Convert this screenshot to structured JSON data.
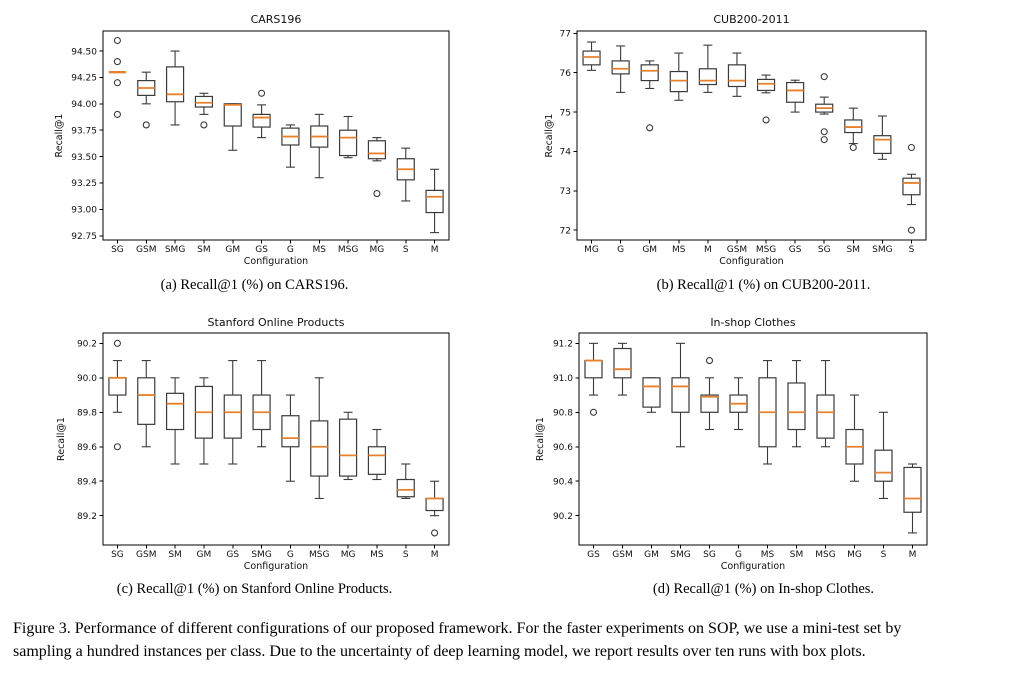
{
  "page": {
    "figure_caption_lines": [
      "Figure 3. Performance of different configurations of our proposed framework. For the faster experiments on SOP, we use a mini-test set by",
      "sampling a hundred instances per class. Due to the uncertainty of deep learning model, we report results over ten runs with box plots."
    ]
  },
  "colors": {
    "median": "#e8812e",
    "box_edge": "#3a3a3a",
    "axis": "#000000",
    "text": "#111111",
    "background": "#ffffff"
  },
  "chart_data": [
    {
      "type": "box",
      "title": "CARS196",
      "caption": "(a) Recall@1 (%) on CARS196.",
      "xlabel": "Configuration",
      "ylabel": "Recall@1",
      "ylim": [
        92.71,
        94.69
      ],
      "yticks": [
        "92.75",
        "93.00",
        "93.25",
        "93.50",
        "93.75",
        "94.00",
        "94.25",
        "94.50"
      ],
      "categories": [
        "SG",
        "GSM",
        "SMG",
        "SM",
        "GM",
        "GS",
        "G",
        "MS",
        "MSG",
        "MG",
        "S",
        "M"
      ],
      "boxes": [
        {
          "whislo": 94.3,
          "q1": 94.3,
          "med": 94.3,
          "q3": 94.3,
          "whishi": 94.3,
          "fliers": [
            94.6,
            94.4,
            94.2,
            93.9
          ]
        },
        {
          "whislo": 94.0,
          "q1": 94.08,
          "med": 94.15,
          "q3": 94.22,
          "whishi": 94.3,
          "fliers": [
            93.8
          ]
        },
        {
          "whislo": 93.8,
          "q1": 94.02,
          "med": 94.09,
          "q3": 94.35,
          "whishi": 94.5,
          "fliers": []
        },
        {
          "whislo": 93.9,
          "q1": 93.97,
          "med": 94.01,
          "q3": 94.07,
          "whishi": 94.1,
          "fliers": [
            93.8
          ]
        },
        {
          "whislo": 93.56,
          "q1": 93.79,
          "med": 93.99,
          "q3": 94.0,
          "whishi": 94.0,
          "fliers": []
        },
        {
          "whislo": 93.68,
          "q1": 93.78,
          "med": 93.87,
          "q3": 93.9,
          "whishi": 93.99,
          "fliers": [
            94.1
          ]
        },
        {
          "whislo": 93.4,
          "q1": 93.61,
          "med": 93.69,
          "q3": 93.77,
          "whishi": 93.8,
          "fliers": []
        },
        {
          "whislo": 93.3,
          "q1": 93.59,
          "med": 93.69,
          "q3": 93.79,
          "whishi": 93.9,
          "fliers": []
        },
        {
          "whislo": 93.49,
          "q1": 93.51,
          "med": 93.68,
          "q3": 93.75,
          "whishi": 93.88,
          "fliers": []
        },
        {
          "whislo": 93.46,
          "q1": 93.48,
          "med": 93.53,
          "q3": 93.65,
          "whishi": 93.68,
          "fliers": [
            93.15
          ]
        },
        {
          "whislo": 93.08,
          "q1": 93.28,
          "med": 93.38,
          "q3": 93.48,
          "whishi": 93.58,
          "fliers": []
        },
        {
          "whislo": 92.78,
          "q1": 92.97,
          "med": 93.12,
          "q3": 93.18,
          "whishi": 93.38,
          "fliers": []
        }
      ]
    },
    {
      "type": "box",
      "title": "CUB200-2011",
      "caption": "(b) Recall@1 (%) on CUB200-2011.",
      "xlabel": "Configuration",
      "ylabel": "Recall@1",
      "ylim": [
        71.75,
        77.06
      ],
      "yticks": [
        "72",
        "73",
        "74",
        "75",
        "76",
        "77"
      ],
      "categories": [
        "MG",
        "G",
        "GM",
        "MS",
        "M",
        "GSM",
        "MSG",
        "GS",
        "SG",
        "SM",
        "SMG",
        "S"
      ],
      "boxes": [
        {
          "whislo": 76.06,
          "q1": 76.2,
          "med": 76.4,
          "q3": 76.55,
          "whishi": 76.78,
          "fliers": []
        },
        {
          "whislo": 75.5,
          "q1": 75.97,
          "med": 76.1,
          "q3": 76.3,
          "whishi": 76.68,
          "fliers": []
        },
        {
          "whislo": 75.6,
          "q1": 75.8,
          "med": 76.05,
          "q3": 76.2,
          "whishi": 76.3,
          "fliers": [
            74.6
          ]
        },
        {
          "whislo": 75.3,
          "q1": 75.52,
          "med": 75.8,
          "q3": 76.03,
          "whishi": 76.5,
          "fliers": []
        },
        {
          "whislo": 75.5,
          "q1": 75.7,
          "med": 75.8,
          "q3": 76.1,
          "whishi": 76.7,
          "fliers": []
        },
        {
          "whislo": 75.4,
          "q1": 75.65,
          "med": 75.8,
          "q3": 76.2,
          "whishi": 76.5,
          "fliers": []
        },
        {
          "whislo": 75.49,
          "q1": 75.55,
          "med": 75.72,
          "q3": 75.83,
          "whishi": 75.94,
          "fliers": [
            74.8
          ]
        },
        {
          "whislo": 75.0,
          "q1": 75.25,
          "med": 75.55,
          "q3": 75.75,
          "whishi": 75.81,
          "fliers": []
        },
        {
          "whislo": 74.95,
          "q1": 75.0,
          "med": 75.1,
          "q3": 75.2,
          "whishi": 75.38,
          "fliers": [
            75.9,
            74.5,
            74.3
          ]
        },
        {
          "whislo": 74.2,
          "q1": 74.48,
          "med": 74.62,
          "q3": 74.8,
          "whishi": 75.1,
          "fliers": [
            74.1
          ]
        },
        {
          "whislo": 73.8,
          "q1": 73.95,
          "med": 74.3,
          "q3": 74.4,
          "whishi": 74.9,
          "fliers": []
        },
        {
          "whislo": 72.65,
          "q1": 72.9,
          "med": 73.2,
          "q3": 73.32,
          "whishi": 73.42,
          "fliers": [
            74.1,
            72.0
          ]
        }
      ]
    },
    {
      "type": "box",
      "title": "Stanford Online Products",
      "caption": "(c) Recall@1 (%) on Stanford Online Products.",
      "xlabel": "Configuration",
      "ylabel": "Recall@1",
      "ylim": [
        89.03,
        90.26
      ],
      "yticks": [
        "89.2",
        "89.4",
        "89.6",
        "89.8",
        "90.0",
        "90.2"
      ],
      "categories": [
        "SG",
        "GSM",
        "SM",
        "GM",
        "GS",
        "SMG",
        "G",
        "MSG",
        "MG",
        "MS",
        "S",
        "M"
      ],
      "boxes": [
        {
          "whislo": 89.8,
          "q1": 89.9,
          "med": 90.0,
          "q3": 90.0,
          "whishi": 90.1,
          "fliers": [
            90.2,
            89.6
          ]
        },
        {
          "whislo": 89.6,
          "q1": 89.73,
          "med": 89.9,
          "q3": 90.0,
          "whishi": 90.1,
          "fliers": []
        },
        {
          "whislo": 89.5,
          "q1": 89.7,
          "med": 89.85,
          "q3": 89.91,
          "whishi": 90.0,
          "fliers": []
        },
        {
          "whislo": 89.5,
          "q1": 89.65,
          "med": 89.8,
          "q3": 89.95,
          "whishi": 90.0,
          "fliers": []
        },
        {
          "whislo": 89.5,
          "q1": 89.65,
          "med": 89.8,
          "q3": 89.9,
          "whishi": 90.1,
          "fliers": []
        },
        {
          "whislo": 89.6,
          "q1": 89.7,
          "med": 89.8,
          "q3": 89.9,
          "whishi": 90.1,
          "fliers": []
        },
        {
          "whislo": 89.4,
          "q1": 89.6,
          "med": 89.65,
          "q3": 89.78,
          "whishi": 89.9,
          "fliers": []
        },
        {
          "whislo": 89.3,
          "q1": 89.43,
          "med": 89.6,
          "q3": 89.75,
          "whishi": 90.0,
          "fliers": []
        },
        {
          "whislo": 89.41,
          "q1": 89.43,
          "med": 89.55,
          "q3": 89.76,
          "whishi": 89.8,
          "fliers": []
        },
        {
          "whislo": 89.41,
          "q1": 89.44,
          "med": 89.55,
          "q3": 89.6,
          "whishi": 89.7,
          "fliers": []
        },
        {
          "whislo": 89.3,
          "q1": 89.31,
          "med": 89.35,
          "q3": 89.41,
          "whishi": 89.5,
          "fliers": []
        },
        {
          "whislo": 89.2,
          "q1": 89.23,
          "med": 89.3,
          "q3": 89.3,
          "whishi": 89.4,
          "fliers": [
            89.1
          ]
        }
      ]
    },
    {
      "type": "box",
      "title": "In-shop Clothes",
      "caption": "(d) Recall@1 (%) on In-shop Clothes.",
      "xlabel": "Configuration",
      "ylabel": "Recall@1",
      "ylim": [
        90.03,
        91.26
      ],
      "yticks": [
        "90.2",
        "90.4",
        "90.6",
        "90.8",
        "91.0",
        "91.2"
      ],
      "categories": [
        "GS",
        "GSM",
        "GM",
        "SMG",
        "SG",
        "G",
        "MS",
        "SM",
        "MSG",
        "MG",
        "S",
        "M"
      ],
      "boxes": [
        {
          "whislo": 90.9,
          "q1": 91.0,
          "med": 91.1,
          "q3": 91.1,
          "whishi": 91.2,
          "fliers": [
            90.8
          ]
        },
        {
          "whislo": 90.9,
          "q1": 91.0,
          "med": 91.05,
          "q3": 91.17,
          "whishi": 91.2,
          "fliers": []
        },
        {
          "whislo": 90.8,
          "q1": 90.83,
          "med": 90.95,
          "q3": 91.0,
          "whishi": 91.0,
          "fliers": []
        },
        {
          "whislo": 90.6,
          "q1": 90.8,
          "med": 90.95,
          "q3": 91.0,
          "whishi": 91.2,
          "fliers": []
        },
        {
          "whislo": 90.7,
          "q1": 90.8,
          "med": 90.89,
          "q3": 90.9,
          "whishi": 91.0,
          "fliers": [
            91.1
          ]
        },
        {
          "whislo": 90.7,
          "q1": 90.8,
          "med": 90.85,
          "q3": 90.9,
          "whishi": 91.0,
          "fliers": []
        },
        {
          "whislo": 90.5,
          "q1": 90.6,
          "med": 90.8,
          "q3": 91.0,
          "whishi": 91.1,
          "fliers": []
        },
        {
          "whislo": 90.6,
          "q1": 90.7,
          "med": 90.8,
          "q3": 90.97,
          "whishi": 91.1,
          "fliers": []
        },
        {
          "whislo": 90.6,
          "q1": 90.65,
          "med": 90.8,
          "q3": 90.9,
          "whishi": 91.1,
          "fliers": []
        },
        {
          "whislo": 90.4,
          "q1": 90.5,
          "med": 90.6,
          "q3": 90.7,
          "whishi": 90.9,
          "fliers": []
        },
        {
          "whislo": 90.3,
          "q1": 90.4,
          "med": 90.45,
          "q3": 90.58,
          "whishi": 90.8,
          "fliers": []
        },
        {
          "whislo": 90.1,
          "q1": 90.22,
          "med": 90.3,
          "q3": 90.48,
          "whishi": 90.5,
          "fliers": []
        }
      ]
    }
  ]
}
